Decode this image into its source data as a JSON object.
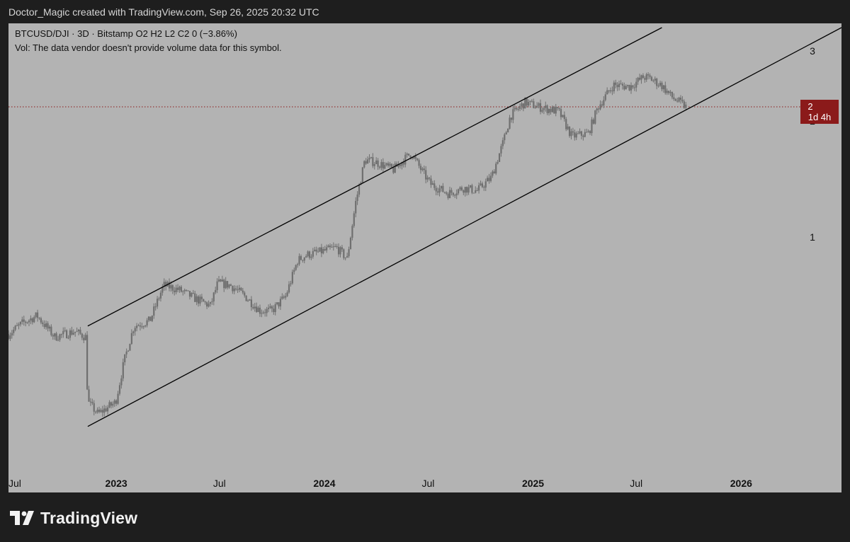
{
  "header": {
    "caption": "Doctor_Magic created with TradingView.com, Sep 26, 2025 20:32 UTC"
  },
  "legend": {
    "line1": "BTCUSD/DJI · 3D · Bitstamp  O2  H2  L2  C2  0 (−3.86%)",
    "line2": "Vol: The data vendor doesn't provide volume data for this symbol."
  },
  "price_label": {
    "value": "2",
    "countdown": "1d 4h",
    "color": "#8b1a1a"
  },
  "brand": {
    "name": "TradingView",
    "icon": "tradingview-logo-icon"
  },
  "colors": {
    "background": "#1e1e1e",
    "plot_background": "#b3b3b3",
    "candles": "#6f6f6f",
    "channel_lines": "#000000",
    "price_line": "#8b1a1a"
  },
  "chart_data": {
    "type": "candlestick",
    "symbol": "BTCUSD/DJI",
    "interval": "3D",
    "exchange": "Bitstamp",
    "y_scale": "log",
    "y_tick_labels": [
      {
        "label": "3",
        "value": 2.95
      },
      {
        "label": "2",
        "value": 2.1
      },
      {
        "label": "1",
        "value": 1.2
      }
    ],
    "x_tick_labels": [
      {
        "label": "Jul",
        "date": "2022-07-01",
        "bold": false
      },
      {
        "label": "2023",
        "date": "2023-01-01",
        "bold": true
      },
      {
        "label": "Jul",
        "date": "2023-07-01",
        "bold": false
      },
      {
        "label": "2024",
        "date": "2024-01-01",
        "bold": true
      },
      {
        "label": "Jul",
        "date": "2024-07-01",
        "bold": false
      },
      {
        "label": "2025",
        "date": "2025-01-01",
        "bold": true
      },
      {
        "label": "Jul",
        "date": "2025-07-01",
        "bold": false
      },
      {
        "label": "2026",
        "date": "2026-01-01",
        "bold": true
      }
    ],
    "x_range": [
      "2022-06-26",
      "2026-06-26"
    ],
    "y_range": [
      0.4,
      3.2
    ],
    "last_price": 2.25,
    "series_path": [
      [
        "2022-06-26",
        0.75
      ],
      [
        "2022-07-20",
        0.79
      ],
      [
        "2022-08-15",
        0.82
      ],
      [
        "2022-09-15",
        0.74
      ],
      [
        "2022-10-20",
        0.76
      ],
      [
        "2022-11-08",
        0.74
      ],
      [
        "2022-11-12",
        0.54
      ],
      [
        "2022-11-30",
        0.51
      ],
      [
        "2022-12-31",
        0.54
      ],
      [
        "2023-01-15",
        0.66
      ],
      [
        "2023-02-01",
        0.78
      ],
      [
        "2023-03-01",
        0.8
      ],
      [
        "2023-03-25",
        0.95
      ],
      [
        "2023-04-20",
        0.93
      ],
      [
        "2023-05-20",
        0.89
      ],
      [
        "2023-06-15",
        0.86
      ],
      [
        "2023-06-28",
        0.96
      ],
      [
        "2023-07-20",
        0.95
      ],
      [
        "2023-08-15",
        0.9
      ],
      [
        "2023-09-10",
        0.84
      ],
      [
        "2023-10-01",
        0.84
      ],
      [
        "2023-10-25",
        0.9
      ],
      [
        "2023-11-15",
        1.07
      ],
      [
        "2023-12-01",
        1.1
      ],
      [
        "2023-12-30",
        1.12
      ],
      [
        "2024-01-22",
        1.14
      ],
      [
        "2024-02-10",
        1.08
      ],
      [
        "2024-02-25",
        1.42
      ],
      [
        "2024-03-12",
        1.74
      ],
      [
        "2024-04-01",
        1.72
      ],
      [
        "2024-05-01",
        1.66
      ],
      [
        "2024-06-01",
        1.8
      ],
      [
        "2024-06-20",
        1.65
      ],
      [
        "2024-07-05",
        1.55
      ],
      [
        "2024-08-05",
        1.48
      ],
      [
        "2024-09-01",
        1.52
      ],
      [
        "2024-09-25",
        1.5
      ],
      [
        "2024-10-20",
        1.6
      ],
      [
        "2024-11-10",
        1.9
      ],
      [
        "2024-11-22",
        2.15
      ],
      [
        "2024-12-18",
        2.3
      ],
      [
        "2025-01-10",
        2.25
      ],
      [
        "2025-02-15",
        2.2
      ],
      [
        "2025-03-10",
        1.95
      ],
      [
        "2025-04-08",
        1.98
      ],
      [
        "2025-04-25",
        2.25
      ],
      [
        "2025-05-22",
        2.5
      ],
      [
        "2025-06-20",
        2.48
      ],
      [
        "2025-07-14",
        2.6
      ],
      [
        "2025-07-25",
        2.58
      ],
      [
        "2025-08-14",
        2.5
      ],
      [
        "2025-09-01",
        2.36
      ],
      [
        "2025-09-26",
        2.25
      ]
    ],
    "annotations": [
      {
        "type": "trend_line",
        "name": "channel-upper-line",
        "start": {
          "date": "2022-11-12",
          "value": 0.78
        },
        "end": {
          "date": "2025-08-15",
          "value": 3.3
        }
      },
      {
        "type": "trend_line",
        "name": "channel-lower-line",
        "start": {
          "date": "2022-11-12",
          "value": 0.48
        },
        "end": {
          "date": "2026-06-26",
          "value": 3.3
        }
      }
    ]
  }
}
